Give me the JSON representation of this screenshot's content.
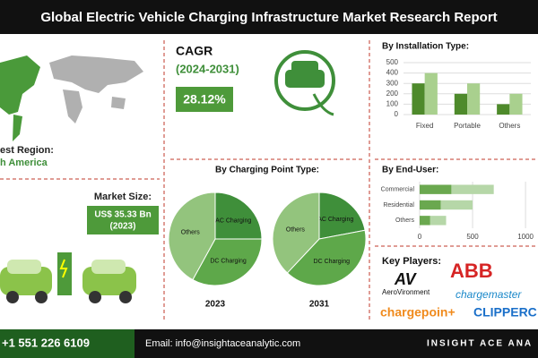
{
  "header": {
    "title": "Global Electric Vehicle Charging Infrastructure Market Research Report"
  },
  "region": {
    "label": "est Region:",
    "value": "h America"
  },
  "market_size": {
    "label": "Market Size:",
    "value": "US$ 35.33 Bn",
    "year": "(2023)"
  },
  "cagr": {
    "label": "CAGR",
    "period": "(2024-2031)",
    "value": "28.12%"
  },
  "key_players": {
    "title": "Key Players:",
    "logos": [
      "AeroVironment",
      "ABB",
      "chargemaster",
      "chargepoin+",
      "CLIPPERC"
    ]
  },
  "footer": {
    "phone": "+1 551 226 6109",
    "email": "Email: info@insightaceanalytic.com",
    "brand": "INSIGHT ACE ANA"
  },
  "chart_data": [
    {
      "type": "bar",
      "title": "By Installation Type:",
      "categories": [
        "Fixed",
        "Portable",
        "Others"
      ],
      "series": [
        {
          "color": "#4e8a2b",
          "values": [
            300,
            200,
            100
          ]
        },
        {
          "color": "#a9d08e",
          "values": [
            400,
            300,
            200
          ]
        }
      ],
      "ylim": [
        0,
        500
      ],
      "yticks": [
        0,
        100,
        200,
        300,
        400,
        500
      ],
      "grid": true
    },
    {
      "type": "pie",
      "title": "2023",
      "categories": [
        "AC Charging",
        "DC Charging",
        "Others"
      ],
      "values": [
        25,
        33,
        42
      ],
      "colors": [
        "#3f8f3a",
        "#5ea84a",
        "#93c47d"
      ]
    },
    {
      "type": "pie",
      "title": "2031",
      "categories": [
        "AC Charging",
        "DC Charging",
        "Others"
      ],
      "values": [
        22,
        40,
        38
      ],
      "colors": [
        "#3f8f3a",
        "#5ea84a",
        "#93c47d"
      ]
    },
    {
      "type": "bar",
      "orientation": "horizontal",
      "stacked": true,
      "title": "By End-User:",
      "categories": [
        "Commercial",
        "Residential",
        "Others"
      ],
      "series": [
        {
          "color": "#6aa84f",
          "values": [
            300,
            200,
            100
          ]
        },
        {
          "color": "#b6d7a8",
          "values": [
            400,
            300,
            150
          ]
        }
      ],
      "xlim": [
        0,
        1050
      ],
      "xticks": [
        0,
        500,
        1000
      ],
      "grid": true
    }
  ],
  "pie_section_title": "By Charging Point Type:"
}
